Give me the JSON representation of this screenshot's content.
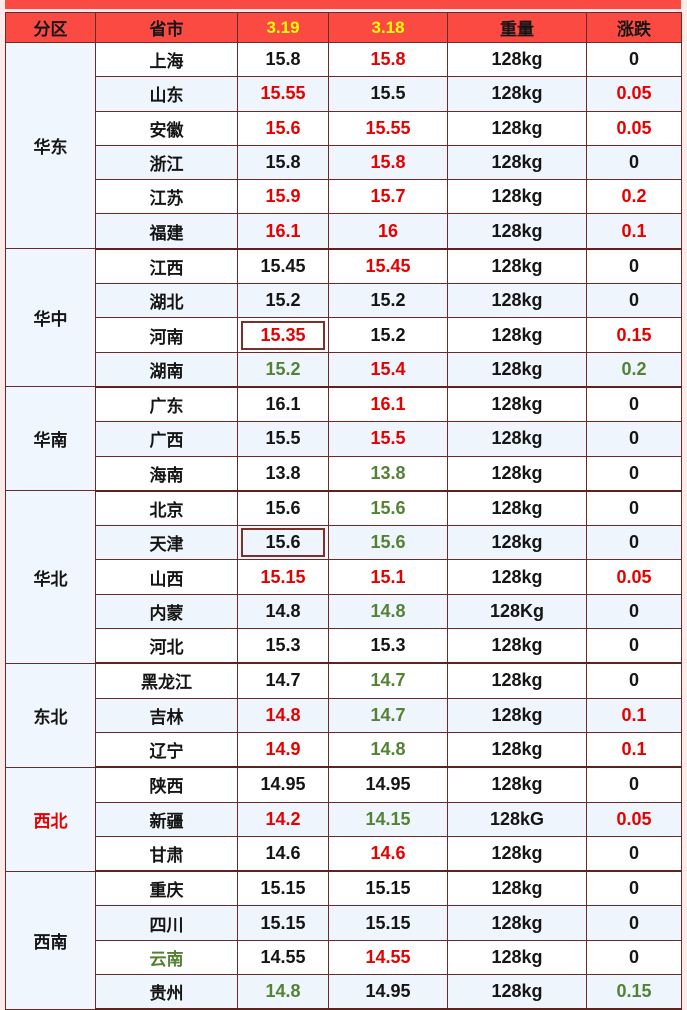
{
  "page": {
    "background": "#fcebe9",
    "accent_red": "#fb4a42",
    "border_color": "#6e2a28",
    "stripe_color": "#eef5fc"
  },
  "colors": {
    "k": "#151515",
    "r": "#e60000",
    "g": "#548235",
    "y": "#ffff00"
  },
  "chart_data": {
    "type": "table",
    "columns": [
      {
        "label": "分区",
        "color": "k"
      },
      {
        "label": "省市",
        "color": "k"
      },
      {
        "label": "3.19",
        "color": "y"
      },
      {
        "label": "3.18",
        "color": "y"
      },
      {
        "label": "重量",
        "color": "k"
      },
      {
        "label": "涨跌",
        "color": "k"
      }
    ],
    "regions": [
      {
        "name": "华东",
        "name_color": "k",
        "rows": [
          {
            "province": "上海",
            "p_color": "k",
            "v319": "15.8",
            "c319": "k",
            "boxed319": false,
            "v318": "15.8",
            "c318": "r",
            "weight": "128kg",
            "change": "0",
            "c_change": "k"
          },
          {
            "province": "山东",
            "p_color": "k",
            "v319": "15.55",
            "c319": "r",
            "boxed319": false,
            "v318": "15.5",
            "c318": "k",
            "weight": "128kg",
            "change": "0.05",
            "c_change": "r"
          },
          {
            "province": "安徽",
            "p_color": "k",
            "v319": "15.6",
            "c319": "r",
            "boxed319": false,
            "v318": "15.55",
            "c318": "r",
            "weight": "128kg",
            "change": "0.05",
            "c_change": "r"
          },
          {
            "province": "浙江",
            "p_color": "k",
            "v319": "15.8",
            "c319": "k",
            "boxed319": false,
            "v318": "15.8",
            "c318": "r",
            "weight": "128kg",
            "change": "0",
            "c_change": "k"
          },
          {
            "province": "江苏",
            "p_color": "k",
            "v319": "15.9",
            "c319": "r",
            "boxed319": false,
            "v318": "15.7",
            "c318": "r",
            "weight": "128kg",
            "change": "0.2",
            "c_change": "r"
          },
          {
            "province": "福建",
            "p_color": "k",
            "v319": "16.1",
            "c319": "r",
            "boxed319": false,
            "v318": "16",
            "c318": "r",
            "weight": "128kg",
            "change": "0.1",
            "c_change": "r"
          }
        ]
      },
      {
        "name": "华中",
        "name_color": "k",
        "rows": [
          {
            "province": "江西",
            "p_color": "k",
            "v319": "15.45",
            "c319": "k",
            "boxed319": false,
            "v318": "15.45",
            "c318": "r",
            "weight": "128kg",
            "change": "0",
            "c_change": "k"
          },
          {
            "province": "湖北",
            "p_color": "k",
            "v319": "15.2",
            "c319": "k",
            "boxed319": false,
            "v318": "15.2",
            "c318": "k",
            "weight": "128kg",
            "change": "0",
            "c_change": "k"
          },
          {
            "province": "河南",
            "p_color": "k",
            "v319": "15.35",
            "c319": "r",
            "boxed319": true,
            "v318": "15.2",
            "c318": "k",
            "weight": "128kg",
            "change": "0.15",
            "c_change": "r"
          },
          {
            "province": "湖南",
            "p_color": "k",
            "v319": "15.2",
            "c319": "g",
            "boxed319": false,
            "v318": "15.4",
            "c318": "r",
            "weight": "128kg",
            "change": "0.2",
            "c_change": "g"
          }
        ]
      },
      {
        "name": "华南",
        "name_color": "k",
        "rows": [
          {
            "province": "广东",
            "p_color": "k",
            "v319": "16.1",
            "c319": "k",
            "boxed319": false,
            "v318": "16.1",
            "c318": "r",
            "weight": "128kg",
            "change": "0",
            "c_change": "k"
          },
          {
            "province": "广西",
            "p_color": "k",
            "v319": "15.5",
            "c319": "k",
            "boxed319": false,
            "v318": "15.5",
            "c318": "r",
            "weight": "128kg",
            "change": "0",
            "c_change": "k"
          },
          {
            "province": "海南",
            "p_color": "k",
            "v319": "13.8",
            "c319": "k",
            "boxed319": false,
            "v318": "13.8",
            "c318": "g",
            "weight": "128kg",
            "change": "0",
            "c_change": "k"
          }
        ]
      },
      {
        "name": "华北",
        "name_color": "k",
        "rows": [
          {
            "province": "北京",
            "p_color": "k",
            "v319": "15.6",
            "c319": "k",
            "boxed319": false,
            "v318": "15.6",
            "c318": "g",
            "weight": "128kg",
            "change": "0",
            "c_change": "k"
          },
          {
            "province": "天津",
            "p_color": "k",
            "v319": "15.6",
            "c319": "k",
            "boxed319": true,
            "v318": "15.6",
            "c318": "g",
            "weight": "128kg",
            "change": "0",
            "c_change": "k"
          },
          {
            "province": "山西",
            "p_color": "k",
            "v319": "15.15",
            "c319": "r",
            "boxed319": false,
            "v318": "15.1",
            "c318": "r",
            "weight": "128kg",
            "change": "0.05",
            "c_change": "r"
          },
          {
            "province": "内蒙",
            "p_color": "k",
            "v319": "14.8",
            "c319": "k",
            "boxed319": false,
            "v318": "14.8",
            "c318": "g",
            "weight": "128Kg",
            "change": "0",
            "c_change": "k"
          },
          {
            "province": "河北",
            "p_color": "k",
            "v319": "15.3",
            "c319": "k",
            "boxed319": false,
            "v318": "15.3",
            "c318": "k",
            "weight": "128kg",
            "change": "0",
            "c_change": "k"
          }
        ]
      },
      {
        "name": "东北",
        "name_color": "k",
        "rows": [
          {
            "province": "黑龙江",
            "p_color": "k",
            "v319": "14.7",
            "c319": "k",
            "boxed319": false,
            "v318": "14.7",
            "c318": "g",
            "weight": "128kg",
            "change": "0",
            "c_change": "k"
          },
          {
            "province": "吉林",
            "p_color": "k",
            "v319": "14.8",
            "c319": "r",
            "boxed319": false,
            "v318": "14.7",
            "c318": "g",
            "weight": "128kg",
            "change": "0.1",
            "c_change": "r"
          },
          {
            "province": "辽宁",
            "p_color": "k",
            "v319": "14.9",
            "c319": "r",
            "boxed319": false,
            "v318": "14.8",
            "c318": "g",
            "weight": "128kg",
            "change": "0.1",
            "c_change": "r"
          }
        ]
      },
      {
        "name": "西北",
        "name_color": "r",
        "rows": [
          {
            "province": "陕西",
            "p_color": "k",
            "v319": "14.95",
            "c319": "k",
            "boxed319": false,
            "v318": "14.95",
            "c318": "k",
            "weight": "128kg",
            "change": "0",
            "c_change": "k"
          },
          {
            "province": "新疆",
            "p_color": "k",
            "v319": "14.2",
            "c319": "r",
            "boxed319": false,
            "v318": "14.15",
            "c318": "g",
            "weight": "128kG",
            "change": "0.05",
            "c_change": "r"
          },
          {
            "province": "甘肃",
            "p_color": "k",
            "v319": "14.6",
            "c319": "k",
            "boxed319": false,
            "v318": "14.6",
            "c318": "r",
            "weight": "128kg",
            "change": "0",
            "c_change": "k"
          }
        ]
      },
      {
        "name": "西南",
        "name_color": "k",
        "rows": [
          {
            "province": "重庆",
            "p_color": "k",
            "v319": "15.15",
            "c319": "k",
            "boxed319": false,
            "v318": "15.15",
            "c318": "k",
            "weight": "128kg",
            "change": "0",
            "c_change": "k"
          },
          {
            "province": "四川",
            "p_color": "k",
            "v319": "15.15",
            "c319": "k",
            "boxed319": false,
            "v318": "15.15",
            "c318": "k",
            "weight": "128kg",
            "change": "0",
            "c_change": "k"
          },
          {
            "province": "云南",
            "p_color": "g",
            "v319": "14.55",
            "c319": "k",
            "boxed319": false,
            "v318": "14.55",
            "c318": "r",
            "weight": "128kg",
            "change": "0",
            "c_change": "k"
          },
          {
            "province": "贵州",
            "p_color": "k",
            "v319": "14.8",
            "c319": "g",
            "boxed319": false,
            "v318": "14.95",
            "c318": "k",
            "weight": "128kg",
            "change": "0.15",
            "c_change": "g"
          }
        ]
      }
    ]
  }
}
